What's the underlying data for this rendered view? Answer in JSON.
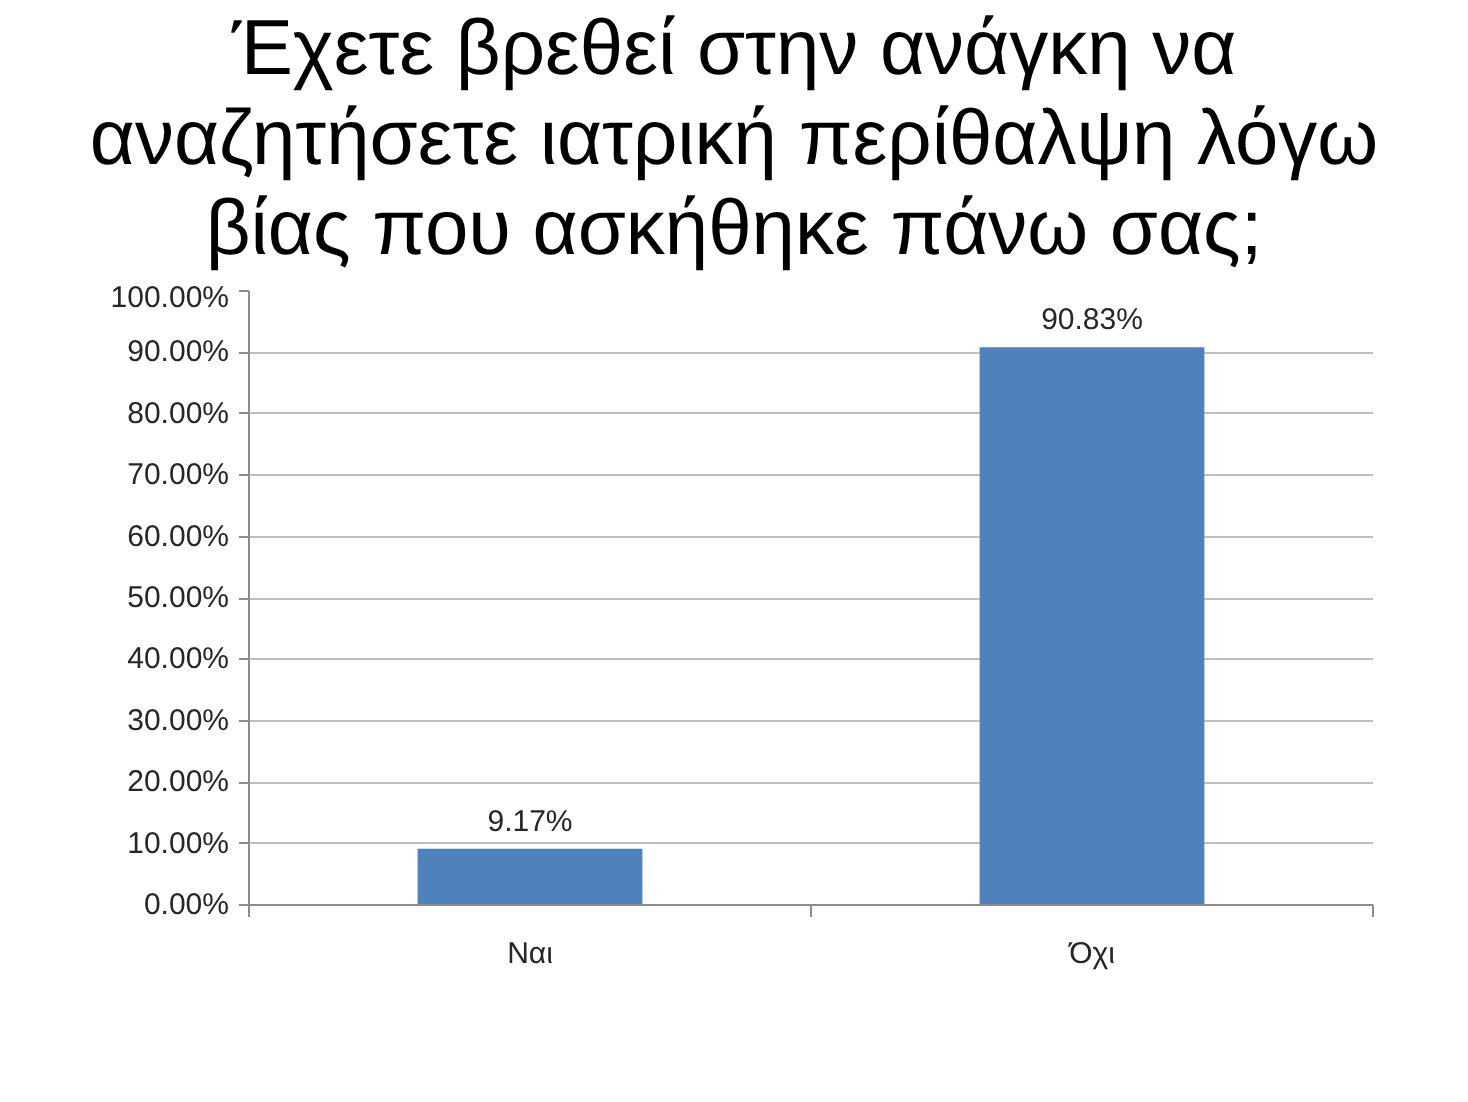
{
  "chart_data": {
    "type": "bar",
    "title": "Έχετε βρεθεί στην ανάγκη να\nαναζητήσετε ιατρική περίθαλψη λόγω\nβίας που ασκήθηκε πάνω σας;",
    "categories": [
      "Ναι",
      "Όχι"
    ],
    "values": [
      9.17,
      90.83
    ],
    "color": "#4f81bd",
    "value_labels": [
      "9.17%",
      "90.83%"
    ],
    "ylim": [
      0,
      100
    ],
    "yticks": [
      {
        "value": 0,
        "label": "0.00%"
      },
      {
        "value": 10,
        "label": "10.00%"
      },
      {
        "value": 20,
        "label": "20.00%"
      },
      {
        "value": 30,
        "label": "30.00%"
      },
      {
        "value": 40,
        "label": "40.00%"
      },
      {
        "value": 50,
        "label": "50.00%"
      },
      {
        "value": 60,
        "label": "60.00%"
      },
      {
        "value": 70,
        "label": "70.00%"
      },
      {
        "value": 80,
        "label": "80.00%"
      },
      {
        "value": 90,
        "label": "90.00%"
      },
      {
        "value": 100,
        "label": "100.00%"
      }
    ],
    "grid": "y"
  }
}
